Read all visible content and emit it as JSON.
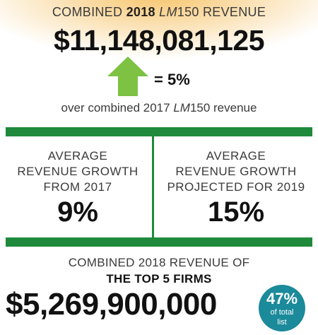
{
  "header": {
    "title_prefix": "COMBINED",
    "title_year": "2018",
    "title_brand": "LM",
    "title_suffix": "150 REVENUE",
    "total_revenue": "$11,148,081,125",
    "growth_pct": "= 5%",
    "comparison_prefix": "over combined 2017",
    "comparison_brand": "LM",
    "comparison_suffix": "150 revenue",
    "arrow_color": "#7dc242",
    "glow_color": "#f7c46a"
  },
  "stats": {
    "left": {
      "line1": "AVERAGE",
      "line2": "REVENUE GROWTH",
      "line3": "FROM 2017",
      "value": "9%"
    },
    "right": {
      "line1": "AVERAGE",
      "line2": "REVENUE GROWTH",
      "line3": "PROJECTED FOR 2019",
      "value": "15%"
    },
    "rule_color": "#1f8a3b"
  },
  "top5": {
    "label": "COMBINED 2018 REVENUE OF",
    "label_bold": "THE TOP 5 FIRMS",
    "value": "$5,269,900,000",
    "badge_pct": "47%",
    "badge_line1": "of total",
    "badge_line2": "list",
    "badge_color": "#1b8a9a"
  }
}
